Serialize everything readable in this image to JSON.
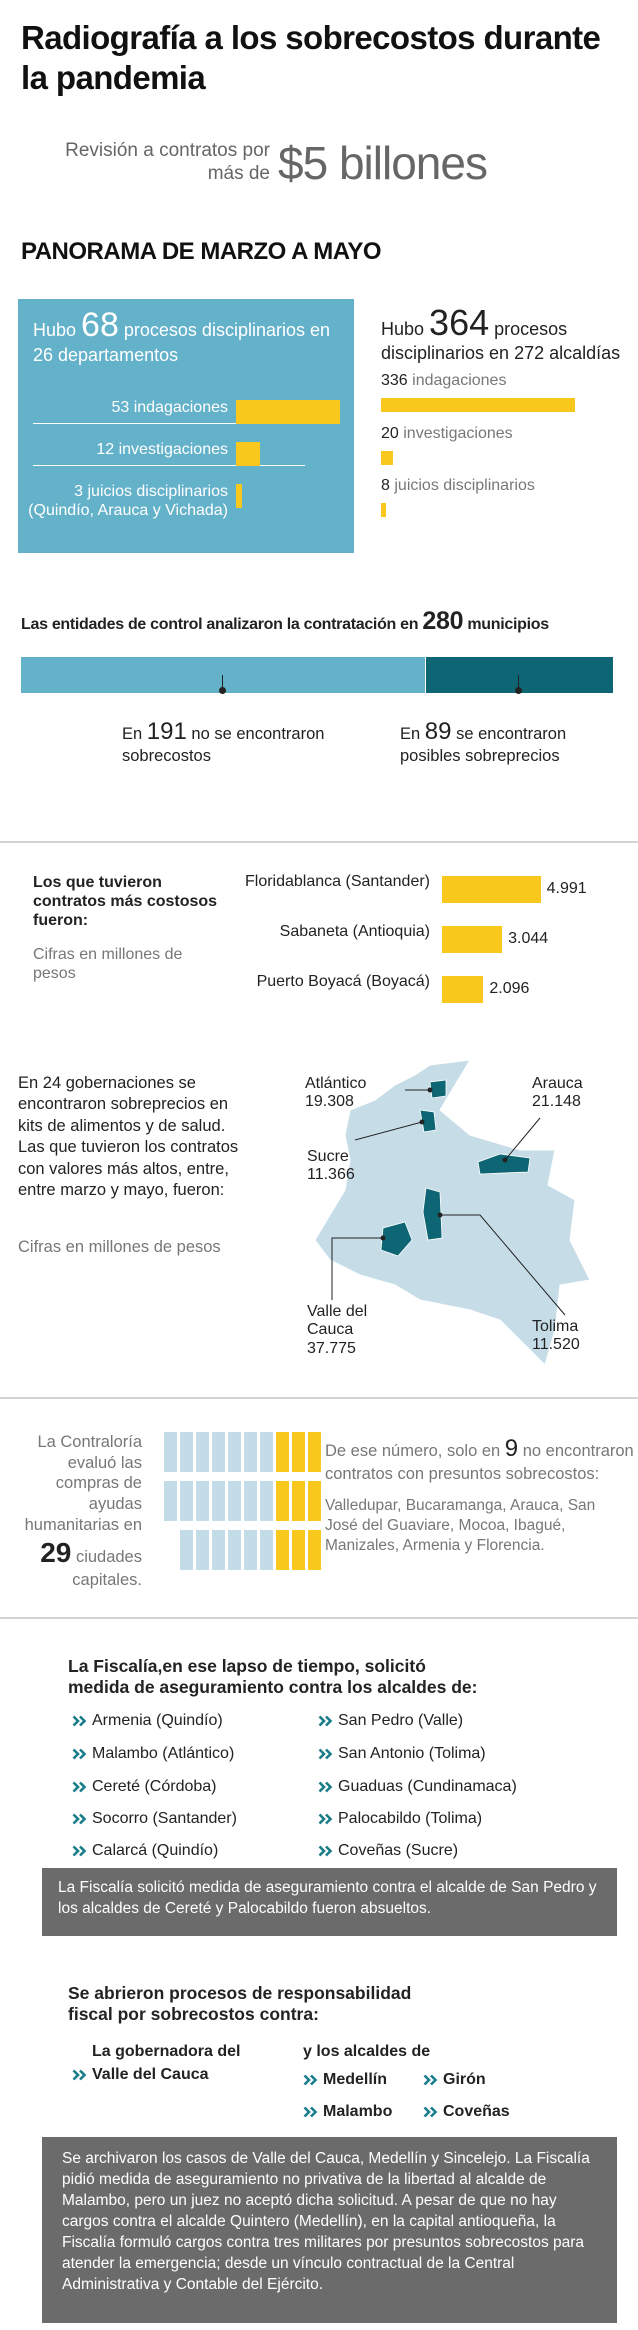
{
  "header": {
    "title": "Radiografía a los sobrecostos durante la pandemia",
    "subtitle_pre": "Revisión a contratos por más de",
    "subtitle_amount": "$5 billones"
  },
  "section_title": "PANORAMA DE MARZO A MAYO",
  "departamentos": {
    "pre": "Hubo",
    "total": 68,
    "post": "procesos disciplinarios en 26 departamentos",
    "items": [
      {
        "value": 53,
        "label": "indagaciones"
      },
      {
        "value": 12,
        "label": "investigaciones"
      },
      {
        "value": 3,
        "label": "juicios disciplinarios (Quindío, Arauca y Vichada)"
      }
    ]
  },
  "alcaldias": {
    "pre": "Hubo",
    "total": 364,
    "post": "procesos disciplinarios en 272 alcaldías",
    "items": [
      {
        "value": 336,
        "label": "indagaciones"
      },
      {
        "value": 20,
        "label": "investigaciones"
      },
      {
        "value": 8,
        "label": "juicios disciplinarios"
      }
    ]
  },
  "municipios": {
    "pre": "Las entidades de control analizaron la contratación en",
    "total": 280,
    "post": "municipios",
    "parts": [
      {
        "pre": "En",
        "value": 191,
        "post": "no se encontraron sobrecostos"
      },
      {
        "pre": "En",
        "value": 89,
        "post": "se encontraron posibles sobreprecios"
      }
    ]
  },
  "costosos": {
    "title": "Los que tuvieron contratos más costosos fueron:",
    "note": "Cifras en millones de pesos",
    "items": [
      {
        "name": "Floridablanca (Santander)",
        "value": 4991,
        "label": "4.991"
      },
      {
        "name": "Sabaneta (Antioquia)",
        "value": 3044,
        "label": "3.044"
      },
      {
        "name": "Puerto Boyacá (Boyacá)",
        "value": 2096,
        "label": "2.096"
      }
    ]
  },
  "gobernaciones": {
    "text": "En 24 gobernaciones se encontraron sobreprecios en kits de alimentos y de salud. Las que tuvieron los contratos con valores más altos, entre, entre marzo y mayo, fueron:",
    "note": "Cifras en millones de pesos",
    "regions": [
      {
        "name": "Atlántico",
        "value": 19308,
        "label": "19.308"
      },
      {
        "name": "Arauca",
        "value": 21148,
        "label": "21.148"
      },
      {
        "name": "Sucre",
        "value": 11366,
        "label": "11.366"
      },
      {
        "name": "Valle del Cauca",
        "value": 37775,
        "label": "37.775"
      },
      {
        "name": "Tolima",
        "value": 11520,
        "label": "11.520"
      }
    ]
  },
  "contraloria": {
    "text_pre": "La Contraloría evaluó las compras de ayudas humanitarias en",
    "ciudades": 29,
    "text_post": "ciudades capitales.",
    "pre": "De ese número, solo en",
    "sin_sobrecostos": 9,
    "post": "no encontraron contratos con presuntos sobrecostos:",
    "cities": "Valledupar, Bucaramanga, Arauca, San José del Guaviare, Mocoa, Ibagué, Manizales, Armenia y Florencia."
  },
  "fiscalia": {
    "title": "La Fiscalía,en ese lapso de tiempo, solicitó medida de aseguramiento contra los alcaldes de:",
    "left": [
      "Armenia (Quindío)",
      "Malambo (Atlántico)",
      "Cereté (Córdoba)",
      "Socorro (Santander)",
      "Calarcá (Quindío)"
    ],
    "right": [
      "San Pedro (Valle)",
      "San Antonio (Tolima)",
      "Guaduas (Cundinamaca)",
      "Palocabildo (Tolima)",
      "Coveñas (Sucre)"
    ],
    "note": "La Fiscalía solicitó medida de aseguramiento contra el alcalde de San Pedro y los alcaldes de Cereté y Palocabildo fueron absueltos."
  },
  "fiscal": {
    "title": "Se abrieron procesos de responsabilidad fiscal por sobrecostos contra:",
    "gobernadora": "La gobernadora del",
    "gobernacion": "Valle del Cauca",
    "alcaldes": "y los alcaldes de",
    "cities": [
      "Medellín",
      "Girón",
      "Malambo",
      "Coveñas"
    ],
    "note": "Se archivaron los casos de Valle del Cauca, Medellín y Sincelejo. La Fiscalía pidió medida de aseguramiento no privativa de la libertad al alcalde de Malambo, pero un juez no aceptó dicha solicitud. A pesar de que no hay cargos contra el alcalde Quintero (Medellín), en la capital antioqueña, la Fiscalía formuló cargos contra tres militares por presuntos sobrecostos para atender la emergencia; desde un vínculo contractual de la Central Administrativa y Contable del Ejército."
  }
}
